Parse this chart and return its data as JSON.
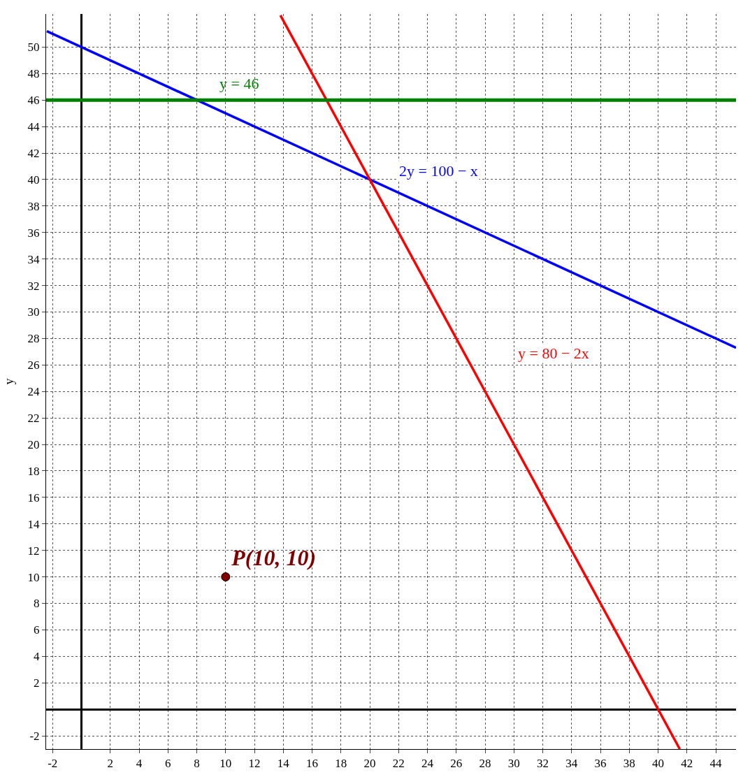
{
  "chart_data": {
    "type": "line",
    "ylabel": "y",
    "xlim": [
      -2.45,
      45.4
    ],
    "ylim": [
      -3,
      52.5
    ],
    "xticks": [
      -2,
      2,
      4,
      6,
      8,
      10,
      12,
      14,
      16,
      18,
      20,
      22,
      24,
      26,
      28,
      30,
      32,
      34,
      36,
      38,
      40,
      42,
      44
    ],
    "yticks": [
      -2,
      2,
      4,
      6,
      8,
      10,
      12,
      14,
      16,
      18,
      20,
      22,
      24,
      26,
      28,
      30,
      32,
      34,
      36,
      38,
      40,
      42,
      44,
      46,
      48,
      50
    ],
    "grid": true,
    "legend": false,
    "marker": "none",
    "line_style": "solid",
    "series": [
      {
        "name": "2y = 100 − x",
        "color": "#0000ff",
        "x": [
          -2.4,
          20,
          45.4
        ],
        "values": [
          51.2,
          40,
          27.3
        ]
      },
      {
        "name": "y = 80 − 2x",
        "color": "#ff0000",
        "x": [
          13.8,
          28,
          41.5
        ],
        "values": [
          52.4,
          24,
          -3
        ]
      },
      {
        "name": "P(10, 10)",
        "type": "scatter",
        "marker": "circle",
        "color": "#800000",
        "x": [
          10
        ],
        "values": [
          10
        ]
      }
    ],
    "ref_lines": [
      {
        "axis": "y",
        "value": 46,
        "label": "y = 46",
        "color": "#008000"
      }
    ]
  }
}
